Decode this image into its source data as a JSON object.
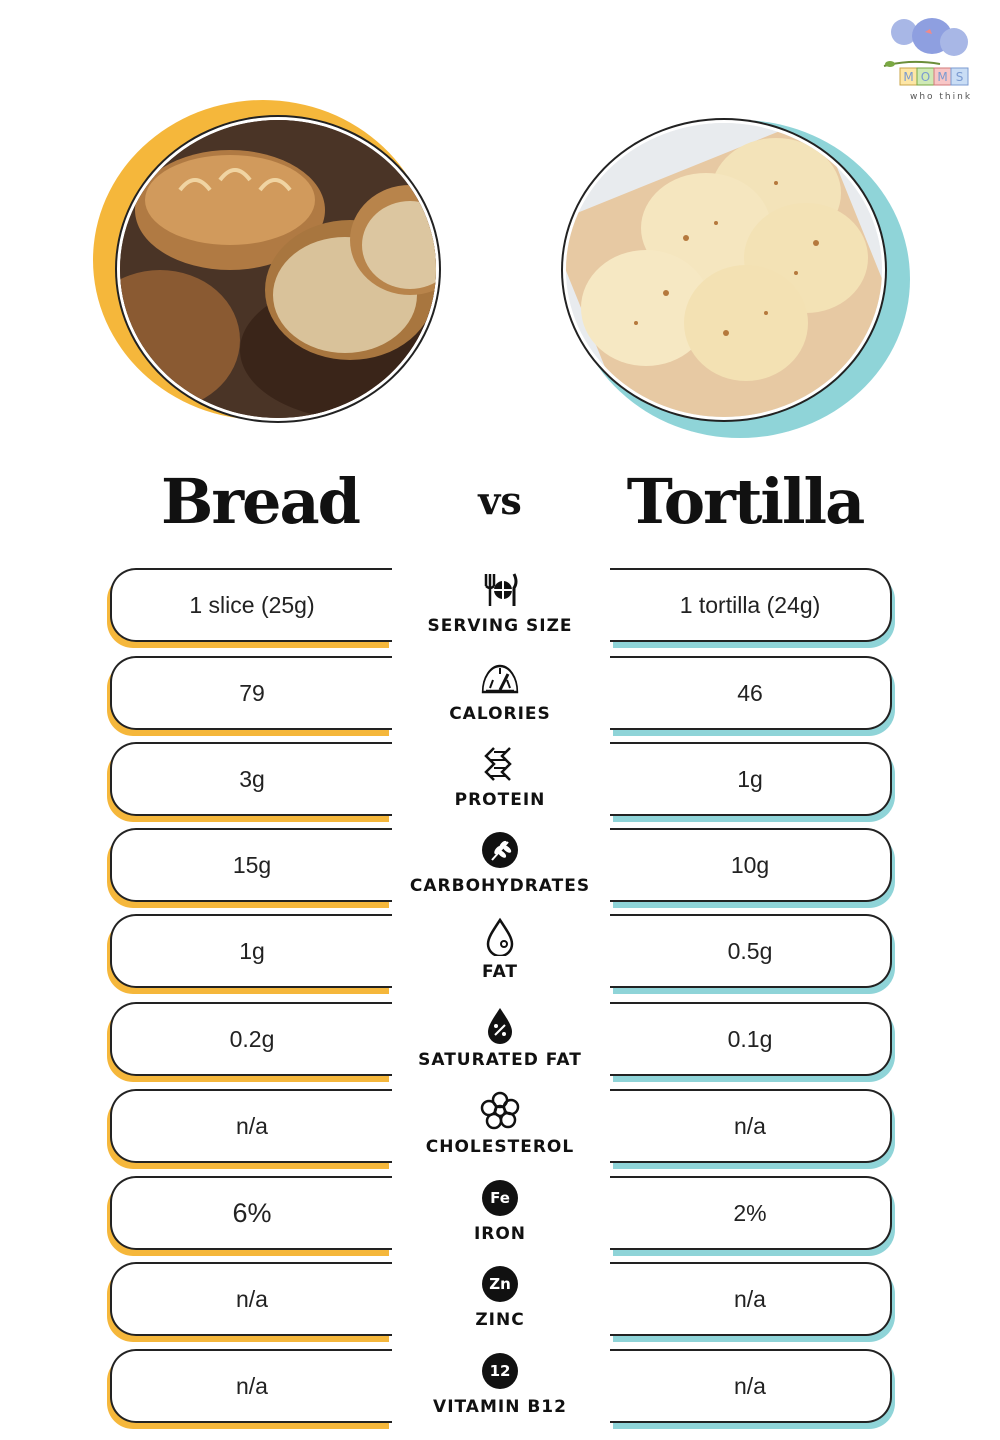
{
  "brand": {
    "logo_letters": [
      "M",
      "O",
      "M",
      "S"
    ],
    "tagline": "who think"
  },
  "colors": {
    "bread": "#f5b73b",
    "tortilla": "#8fd4d8",
    "text": "#111111"
  },
  "images": {
    "left": "bread-loaves-photo",
    "right": "tortillas-photo"
  },
  "titles": {
    "left": "Bread",
    "vs": "vs",
    "right": "Tortilla"
  },
  "rows": [
    {
      "label": "SERVING SIZE",
      "icon": "utensils-plate-icon",
      "bread": "1 slice (25g)",
      "tortilla": "1 tortilla (24g)"
    },
    {
      "label": "CALORIES",
      "icon": "gauge-icon",
      "bread": "79",
      "tortilla": "46"
    },
    {
      "label": "PROTEIN",
      "icon": "protein-helix-icon",
      "bread": "3g",
      "tortilla": "1g"
    },
    {
      "label": "CARBOHYDRATES",
      "icon": "wheat-icon",
      "bread": "15g",
      "tortilla": "10g"
    },
    {
      "label": "FAT",
      "icon": "drop-icon",
      "bread": "1g",
      "tortilla": "0.5g"
    },
    {
      "label": "SATURATED FAT",
      "icon": "percent-drop-icon",
      "bread": "0.2g",
      "tortilla": "0.1g"
    },
    {
      "label": "CHOLESTEROL",
      "icon": "cholesterol-icon",
      "bread": "n/a",
      "tortilla": "n/a"
    },
    {
      "label": "IRON",
      "icon": "Fe",
      "bread": "6%",
      "tortilla": "2%"
    },
    {
      "label": "ZINC",
      "icon": "Zn",
      "bread": "n/a",
      "tortilla": "n/a"
    },
    {
      "label": "VITAMIN B12",
      "icon": "12",
      "bread": "n/a",
      "tortilla": "n/a"
    }
  ]
}
